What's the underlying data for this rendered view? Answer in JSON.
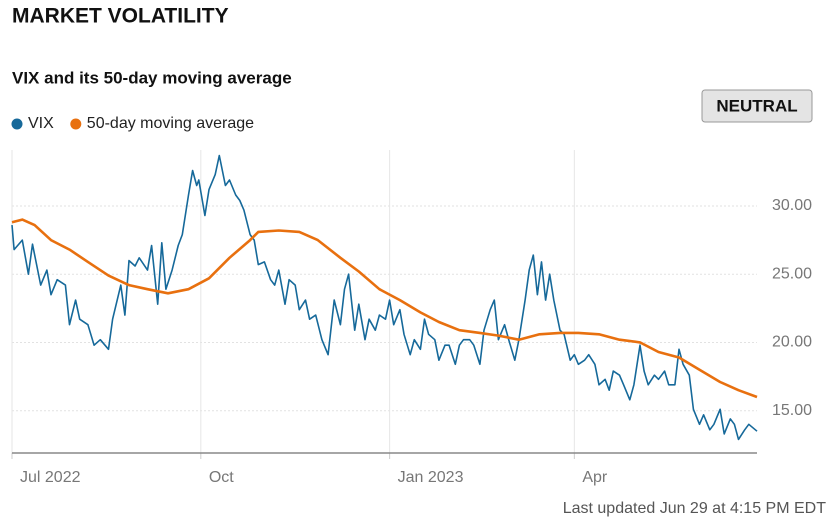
{
  "chart_data": {
    "type": "line",
    "title": "MARKET VOLATILITY",
    "subtitle": "VIX and its 50-day moving average",
    "indicator": "NEUTRAL",
    "footnote": "Last updated Jun 29 at 4:15 PM EDT",
    "xlim": [
      0,
      363
    ],
    "xticks": [
      {
        "value": 0,
        "label": "Jul 2022"
      },
      {
        "value": 92,
        "label": "Oct"
      },
      {
        "value": 184,
        "label": "Jan 2023"
      },
      {
        "value": 274,
        "label": "Apr"
      }
    ],
    "ylim": [
      11.9,
      34.1
    ],
    "yticks": [
      {
        "value": 15,
        "label": "15.00"
      },
      {
        "value": 20,
        "label": "20.00"
      },
      {
        "value": 25,
        "label": "25.00"
      },
      {
        "value": 30,
        "label": "30.00"
      }
    ],
    "grid": true,
    "legend": "top-left",
    "series": [
      {
        "name": "VIX",
        "color": "#16699a",
        "x": [
          0,
          1,
          5,
          8,
          10,
          14,
          17,
          19,
          22,
          26,
          28,
          31,
          33,
          37,
          40,
          43,
          47,
          49,
          53,
          55,
          57,
          60,
          62,
          66,
          68,
          71,
          73,
          75,
          78,
          81,
          83,
          86,
          88,
          90,
          91,
          94,
          96,
          99,
          101,
          104,
          106,
          109,
          111,
          113,
          116,
          118,
          120,
          123,
          126,
          128,
          130,
          133,
          135,
          138,
          140,
          143,
          145,
          148,
          151,
          154,
          157,
          160,
          162,
          164,
          167,
          169,
          172,
          174,
          177,
          179,
          182,
          184,
          186,
          189,
          191,
          194,
          196,
          199,
          201,
          203,
          206,
          208,
          211,
          213,
          216,
          218,
          220,
          223,
          225,
          228,
          230,
          233,
          235,
          237,
          240,
          242,
          245,
          247,
          250,
          252,
          254,
          256,
          258,
          260,
          262,
          264,
          267,
          269,
          272,
          274,
          276,
          279,
          281,
          284,
          286,
          289,
          291,
          293,
          296,
          298,
          301,
          303,
          306,
          308,
          310,
          313,
          315,
          318,
          320,
          323,
          325,
          327,
          330,
          332,
          335,
          337,
          340,
          342,
          345,
          347,
          350,
          352,
          354,
          357,
          359,
          363
        ],
        "values": [
          28.6,
          26.8,
          27.5,
          25,
          27.2,
          24.2,
          25.3,
          23.5,
          24.6,
          24.2,
          21.3,
          23.1,
          21.7,
          21.3,
          19.8,
          20.2,
          19.5,
          21.7,
          24.2,
          22,
          26,
          25.6,
          26.2,
          25.3,
          27.1,
          22.8,
          27.3,
          23.9,
          25.3,
          27.1,
          27.9,
          30.8,
          32.6,
          31.5,
          31.9,
          29.3,
          31.2,
          32.3,
          33.7,
          31.5,
          31.9,
          30.8,
          30.4,
          29.7,
          27.9,
          27.5,
          25.7,
          25.9,
          24.6,
          24.2,
          25.3,
          22.8,
          24.6,
          24.2,
          22.4,
          23.1,
          21.7,
          22,
          20.2,
          19.1,
          23.1,
          21.3,
          23.9,
          25,
          20.9,
          22.8,
          20.2,
          21.7,
          20.9,
          22,
          21.7,
          23.1,
          21.3,
          22.4,
          20.6,
          19.1,
          20.2,
          19.5,
          21.7,
          20.6,
          20.2,
          18.7,
          19.8,
          19.8,
          18.4,
          19.8,
          20.2,
          20.2,
          19.8,
          18.4,
          20.9,
          22.4,
          23.1,
          20.2,
          21.3,
          20.2,
          18.7,
          20.2,
          23.1,
          25.3,
          26.4,
          23.5,
          25.9,
          23.1,
          25,
          23.1,
          20.9,
          20.6,
          18.7,
          19.1,
          18.4,
          18.7,
          19.1,
          18.4,
          16.9,
          17.3,
          16.5,
          17.9,
          17.6,
          16.9,
          15.8,
          16.9,
          19.8,
          17.9,
          16.9,
          17.6,
          17.3,
          17.9,
          16.9,
          16.9,
          19.5,
          18.4,
          17.6,
          15.1,
          14,
          14.7,
          13.6,
          14,
          15.1,
          13.3,
          14.4,
          14,
          12.9,
          13.6,
          14,
          13.5
        ]
      },
      {
        "name": "50-day moving average",
        "color": "#e8700f",
        "x": [
          0,
          5,
          11,
          19,
          28,
          37,
          47,
          57,
          66,
          76,
          86,
          96,
          106,
          116,
          120,
          130,
          140,
          149,
          160,
          169,
          179,
          189,
          199,
          208,
          218,
          228,
          237,
          247,
          257,
          267,
          276,
          286,
          296,
          306,
          315,
          325,
          335,
          345,
          354,
          363
        ],
        "values": [
          28.8,
          29,
          28.6,
          27.5,
          26.8,
          25.9,
          24.9,
          24.2,
          23.9,
          23.6,
          23.9,
          24.7,
          26.2,
          27.5,
          28.1,
          28.2,
          28.1,
          27.5,
          26.2,
          25.2,
          23.9,
          23.1,
          22.2,
          21.5,
          20.9,
          20.7,
          20.5,
          20.2,
          20.6,
          20.7,
          20.7,
          20.6,
          20.2,
          20,
          19.3,
          18.9,
          18,
          17.1,
          16.5,
          16
        ]
      }
    ]
  }
}
